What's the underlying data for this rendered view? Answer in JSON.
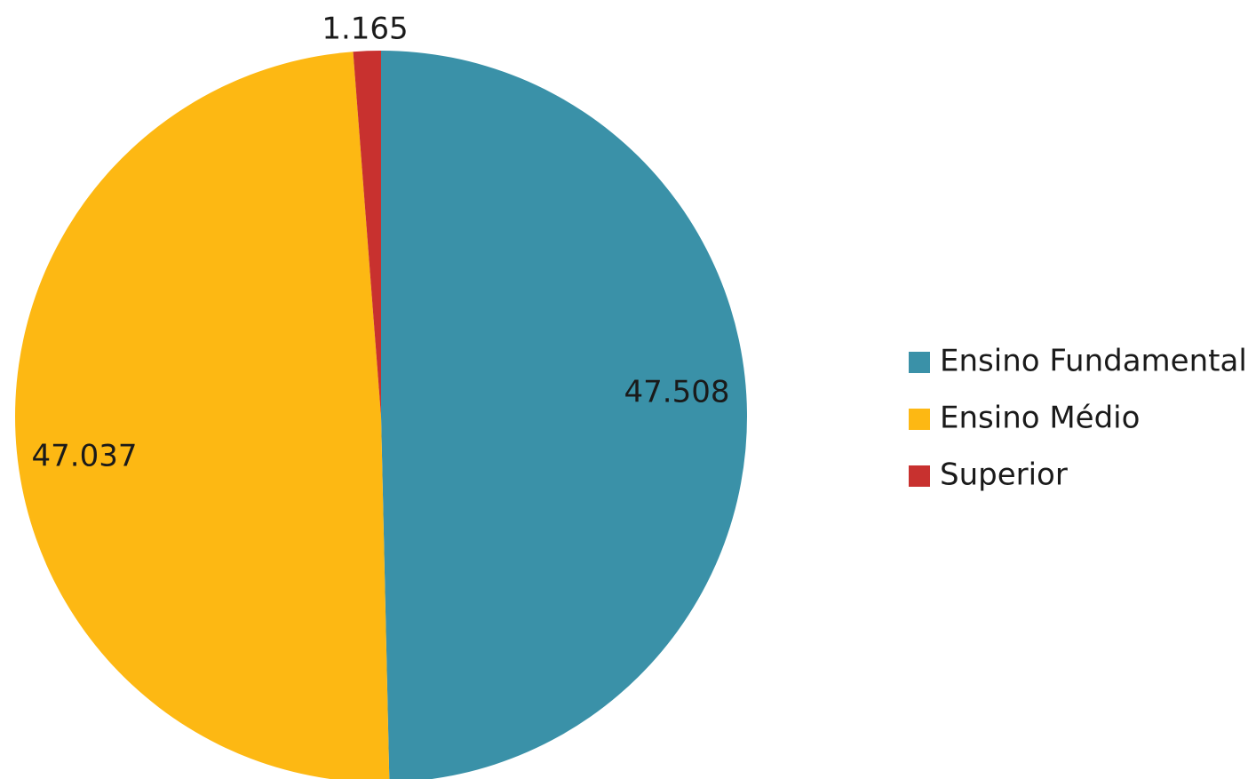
{
  "chart_data": {
    "type": "pie",
    "title": "",
    "categories": [
      "Ensino Fundamental",
      "Ensino Médio",
      "Superior"
    ],
    "values": [
      47508,
      47037,
      1165
    ],
    "value_labels": [
      "47.508",
      "47.037",
      "1.165"
    ],
    "colors": [
      "#3a91a8",
      "#fdb813",
      "#c8312f"
    ],
    "legend_position": "right",
    "start_angle_deg": 0,
    "direction": "clockwise"
  }
}
